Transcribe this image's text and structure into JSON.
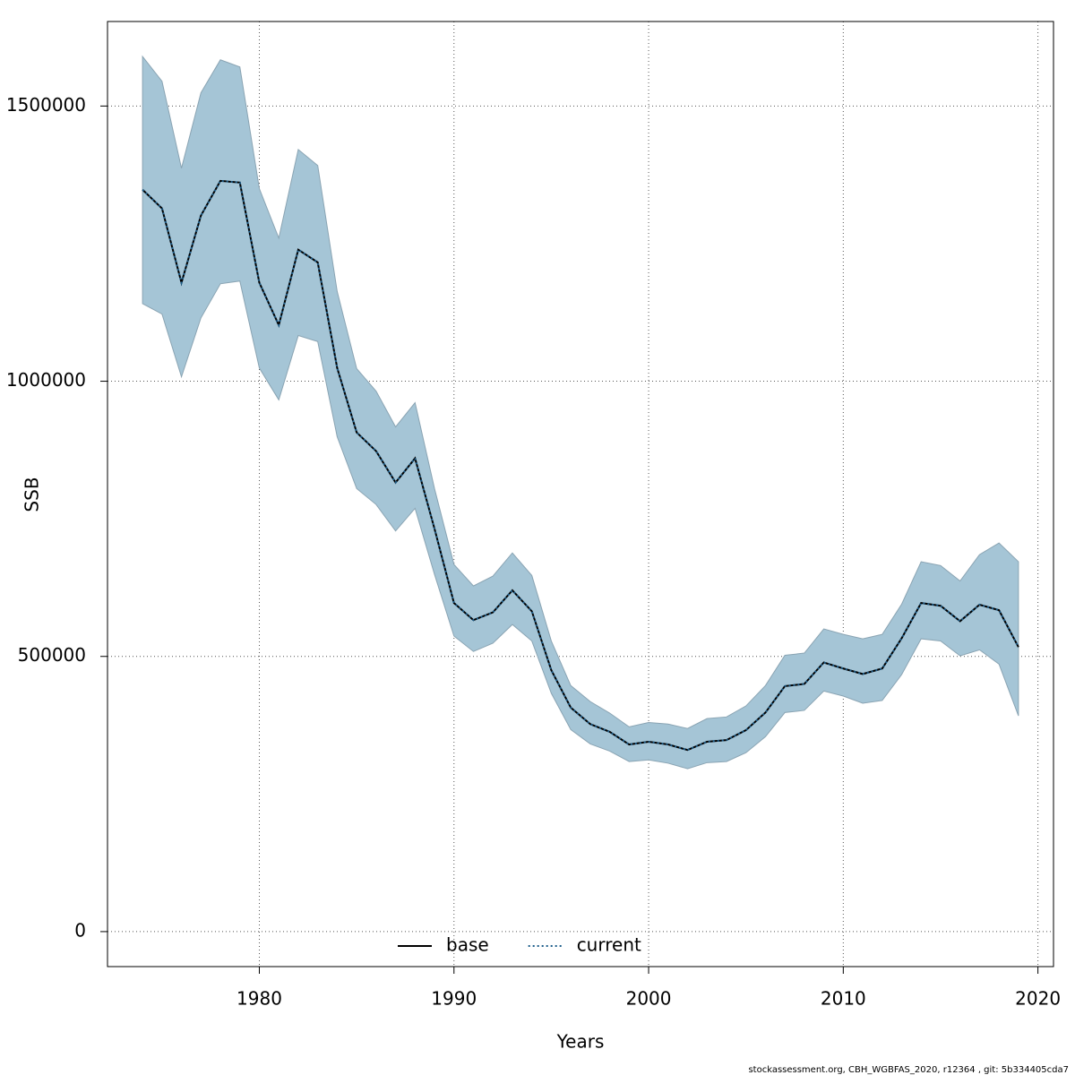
{
  "chart_data": {
    "type": "line",
    "xlabel": "Years",
    "ylabel": "SSB",
    "footnote": "stockassessment.org, CBH_WGBFAS_2020, r12364 , git: 5b334405cda7",
    "x": [
      1974,
      1975,
      1976,
      1977,
      1978,
      1979,
      1980,
      1981,
      1982,
      1983,
      1984,
      1985,
      1986,
      1987,
      1988,
      1989,
      1990,
      1991,
      1992,
      1993,
      1994,
      1995,
      1996,
      1997,
      1998,
      1999,
      2000,
      2001,
      2002,
      2003,
      2004,
      2005,
      2006,
      2007,
      2008,
      2009,
      2010,
      2011,
      2012,
      2013,
      2014,
      2015,
      2016,
      2017,
      2018,
      2019
    ],
    "series": [
      {
        "name": "base",
        "color": "#000000",
        "dash": "solid",
        "values": [
          1348000,
          1314000,
          1179000,
          1301000,
          1364000,
          1361000,
          1179000,
          1102000,
          1239000,
          1216000,
          1024000,
          907000,
          873000,
          816000,
          860000,
          732000,
          597000,
          566000,
          580000,
          620000,
          582000,
          475000,
          407000,
          377000,
          363000,
          340000,
          345000,
          340000,
          330000,
          345000,
          348000,
          366000,
          398000,
          446000,
          450000,
          489000,
          478000,
          468000,
          478000,
          533000,
          597000,
          592000,
          564000,
          594000,
          584000,
          517000
        ]
      },
      {
        "name": "current",
        "color": "#1f5f8b",
        "dash": "dotted",
        "band_color": "#a5c5d6",
        "values": [
          1348000,
          1314000,
          1179000,
          1301000,
          1364000,
          1361000,
          1179000,
          1102000,
          1239000,
          1216000,
          1024000,
          907000,
          873000,
          816000,
          860000,
          732000,
          597000,
          566000,
          580000,
          620000,
          582000,
          475000,
          407000,
          377000,
          363000,
          340000,
          345000,
          340000,
          330000,
          345000,
          348000,
          366000,
          398000,
          446000,
          450000,
          489000,
          478000,
          468000,
          478000,
          533000,
          597000,
          592000,
          564000,
          594000,
          584000,
          517000
        ],
        "upper": [
          1590000,
          1545000,
          1387000,
          1524000,
          1584000,
          1571000,
          1350000,
          1260000,
          1421000,
          1392000,
          1163000,
          1023000,
          982000,
          917000,
          961000,
          805000,
          667000,
          628000,
          646000,
          688000,
          647000,
          528000,
          447000,
          418000,
          397000,
          372000,
          380000,
          377000,
          369000,
          387000,
          390000,
          410000,
          447000,
          502000,
          506000,
          550000,
          540000,
          532000,
          540000,
          595000,
          672000,
          665000,
          637000,
          685000,
          706000,
          672000
        ],
        "lower": [
          1141000,
          1122000,
          1008000,
          1115000,
          1177000,
          1182000,
          1024000,
          966000,
          1083000,
          1072000,
          899000,
          805000,
          776000,
          728000,
          769000,
          649000,
          537000,
          509000,
          524000,
          558000,
          528000,
          433000,
          367000,
          341000,
          328000,
          309000,
          312000,
          306000,
          296000,
          307000,
          309000,
          325000,
          354000,
          398000,
          402000,
          437000,
          428000,
          415000,
          420000,
          467000,
          532000,
          528000,
          501000,
          512000,
          486000,
          392000
        ]
      }
    ],
    "xlim": [
      1972.2,
      2020.8
    ],
    "ylim": [
      -63600,
      1653600
    ],
    "xticks": [
      1980,
      1990,
      2000,
      2010,
      2020
    ],
    "yticks": [
      0,
      500000,
      1000000,
      1500000
    ],
    "grid": true,
    "legend": "bottom"
  }
}
